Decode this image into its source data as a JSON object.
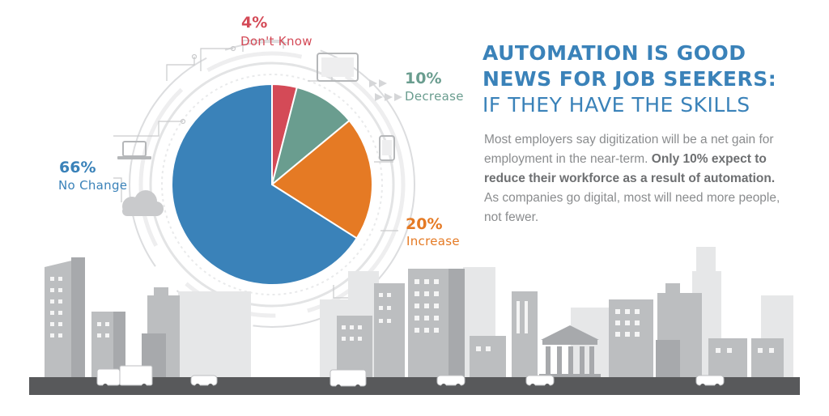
{
  "headline": {
    "line1": "AUTOMATION IS GOOD",
    "line2": "NEWS FOR JOB SEEKERS:",
    "line3": "IF THEY HAVE THE SKILLS"
  },
  "body": {
    "part1": "Most employers say digitization will be a net gain for employment in the near-term. ",
    "bold": "Only 10% expect to reduce their workforce as a result of automation.",
    "part2": " As companies go digital, most will need more people, not fewer."
  },
  "colors": {
    "accent": "#3a82b9",
    "dont_know": "#d44a57",
    "decrease": "#6a9d8f",
    "increase": "#e57a24",
    "no_change": "#3a82b9",
    "city": "#bcbec0",
    "city_dark": "#a7a9ac"
  },
  "icons": [
    "laptop-icon",
    "tablet-icon",
    "phone-icon",
    "cloud-icon",
    "arrow-icon"
  ],
  "chart_data": {
    "type": "pie",
    "title": "",
    "slices": [
      {
        "label": "Don't Know",
        "pct_label": "4%",
        "value": 4,
        "color": "#d44a57"
      },
      {
        "label": "Decrease",
        "pct_label": "10%",
        "value": 10,
        "color": "#6a9d8f"
      },
      {
        "label": "Increase",
        "pct_label": "20%",
        "value": 20,
        "color": "#e57a24"
      },
      {
        "label": "No Change",
        "pct_label": "66%",
        "value": 66,
        "color": "#3a82b9"
      }
    ]
  }
}
